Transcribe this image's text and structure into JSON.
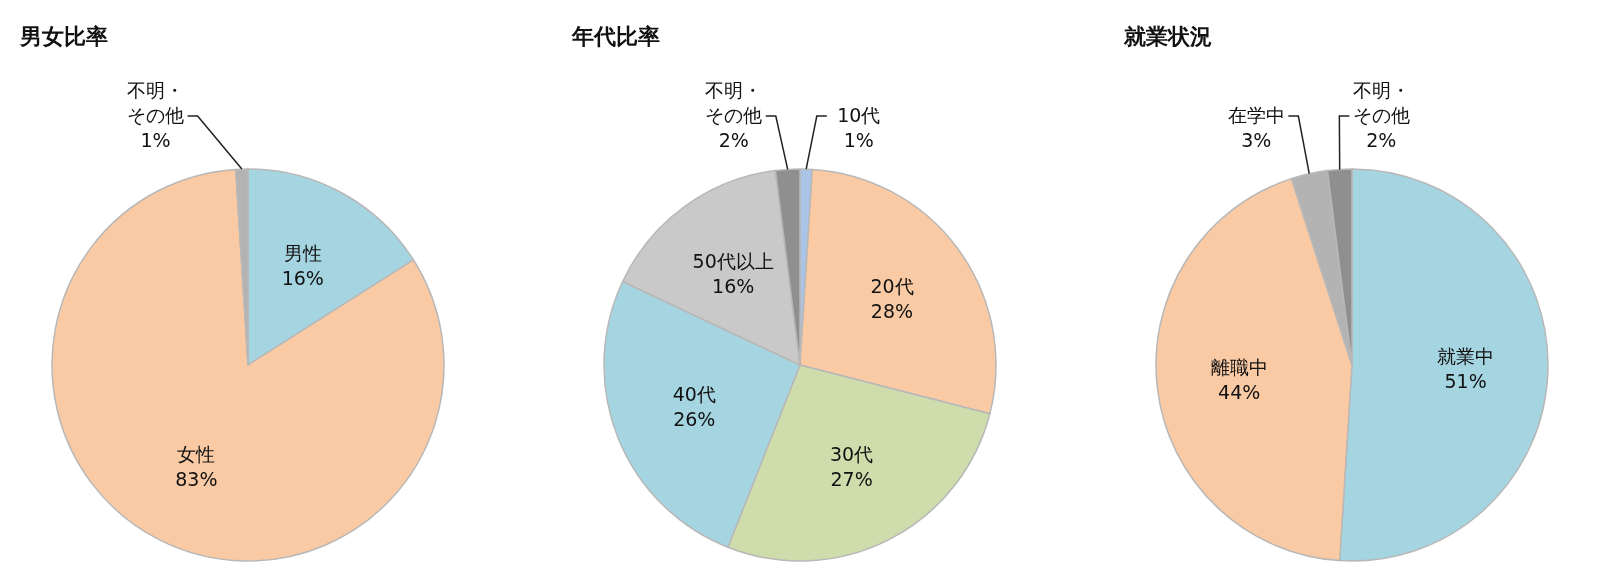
{
  "chart_data": [
    {
      "type": "pie",
      "title": "男女比率",
      "categories": [
        "男性",
        "女性",
        "不明・その他"
      ],
      "values": [
        16,
        83,
        1
      ],
      "value_labels": [
        "16%",
        "83%",
        "1%"
      ],
      "colors": [
        "#a6d5e2",
        "#f9caa4",
        "#b3b3b3"
      ]
    },
    {
      "type": "pie",
      "title": "年代比率",
      "categories": [
        "10代",
        "20代",
        "30代",
        "40代",
        "50代以上",
        "不明・その他"
      ],
      "values": [
        1,
        28,
        27,
        26,
        16,
        2
      ],
      "value_labels": [
        "1%",
        "28%",
        "27%",
        "26%",
        "16%",
        "2%"
      ],
      "colors": [
        "#a9c4e6",
        "#f9caa4",
        "#cfdcac",
        "#a6d5e2",
        "#c9c9c9",
        "#8f8f8f"
      ]
    },
    {
      "type": "pie",
      "title": "就業状況",
      "categories": [
        "就業中",
        "離職中",
        "在学中",
        "不明・その他"
      ],
      "values": [
        51,
        44,
        3,
        2
      ],
      "value_labels": [
        "51%",
        "44%",
        "3%",
        "2%"
      ],
      "colors": [
        "#a6d5e2",
        "#f9caa4",
        "#b3b3b3",
        "#8f8f8f"
      ]
    }
  ]
}
